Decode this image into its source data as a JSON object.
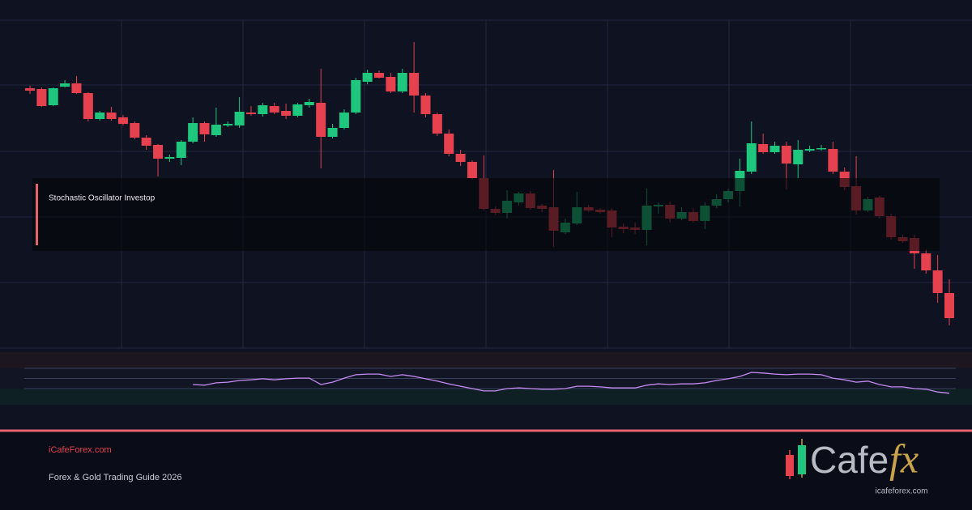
{
  "chart_data": {
    "type": "candlestick",
    "title": "Stochastic Oscillator Investop",
    "up_color": "#1fc77e",
    "down_color": "#e5414f",
    "ylim": [
      0,
      405
    ],
    "open": [
      321,
      320,
      300,
      323,
      327,
      315,
      283,
      291,
      285,
      278,
      260,
      251,
      234,
      235,
      255,
      278,
      263,
      275,
      275,
      291,
      289,
      299,
      293,
      287,
      300,
      303,
      261,
      272,
      291,
      329,
      340,
      335,
      317,
      340,
      312,
      289,
      265,
      240,
      230,
      210,
      172,
      167,
      180,
      191,
      176,
      174,
      143,
      154,
      174,
      171,
      170,
      150,
      149,
      146,
      175,
      177,
      160,
      168,
      157,
      176,
      184,
      194,
      218,
      252,
      242,
      250,
      227,
      244,
      246,
      246,
      218,
      200,
      170,
      186,
      163,
      137,
      136,
      117,
      96,
      68
    ],
    "high": [
      324,
      322,
      322,
      331,
      336,
      316,
      293,
      298,
      288,
      280,
      263,
      252,
      239,
      257,
      285,
      280,
      297,
      280,
      310,
      299,
      303,
      303,
      302,
      303,
      308,
      345,
      277,
      295,
      334,
      344,
      343,
      340,
      345,
      378,
      315,
      291,
      270,
      245,
      232,
      238,
      175,
      195,
      193,
      194,
      178,
      220,
      160,
      193,
      177,
      173,
      173,
      154,
      155,
      197,
      180,
      181,
      174,
      173,
      180,
      190,
      197,
      234,
      280,
      265,
      255,
      255,
      257,
      250,
      251,
      255,
      223,
      237,
      187,
      188,
      166,
      140,
      140,
      122,
      115,
      85
    ],
    "low": [
      314,
      298,
      299,
      322,
      314,
      280,
      281,
      281,
      275,
      258,
      245,
      212,
      230,
      226,
      253,
      255,
      261,
      273,
      272,
      287,
      286,
      289,
      283,
      285,
      297,
      222,
      259,
      270,
      289,
      326,
      333,
      315,
      315,
      291,
      285,
      262,
      237,
      225,
      208,
      170,
      164,
      160,
      176,
      171,
      168,
      125,
      141,
      152,
      168,
      166,
      137,
      142,
      141,
      127,
      166,
      155,
      158,
      155,
      147,
      173,
      180,
      175,
      215,
      240,
      240,
      196,
      210,
      242,
      244,
      215,
      195,
      165,
      168,
      160,
      134,
      130,
      98,
      92,
      56,
      28
    ],
    "close": [
      318,
      299,
      321,
      327,
      315,
      283,
      291,
      283,
      277,
      260,
      250,
      234,
      236,
      255,
      278,
      264,
      276,
      277,
      292,
      289,
      300,
      291,
      287,
      301,
      304,
      261,
      272,
      291,
      331,
      340,
      334,
      317,
      340,
      312,
      289,
      265,
      240,
      230,
      210,
      172,
      167,
      182,
      191,
      173,
      172,
      145,
      155,
      174,
      170,
      168,
      149,
      147,
      146,
      176,
      177,
      160,
      168,
      157,
      176,
      184,
      194,
      219,
      253,
      242,
      250,
      228,
      245,
      246,
      247,
      218,
      199,
      170,
      184,
      163,
      137,
      132,
      117,
      96,
      68,
      37
    ],
    "indicator": {
      "color": "#c58cf5",
      "ylim": [
        0,
        100
      ],
      "yticks": [
        20,
        50,
        80
      ],
      "values": [
        null,
        null,
        null,
        null,
        null,
        null,
        null,
        null,
        null,
        null,
        null,
        null,
        null,
        null,
        32,
        30,
        37,
        39,
        44,
        46,
        49,
        46,
        49,
        51,
        51,
        32,
        39,
        51,
        61,
        63,
        63,
        56,
        61,
        56,
        49,
        42,
        34,
        27,
        20,
        13,
        13,
        20,
        22,
        20,
        18,
        18,
        20,
        27,
        27,
        25,
        22,
        22,
        22,
        30,
        34,
        32,
        34,
        34,
        37,
        44,
        49,
        56,
        68,
        66,
        63,
        61,
        63,
        63,
        61,
        51,
        46,
        39,
        42,
        32,
        25,
        25,
        20,
        18,
        10,
        6
      ]
    }
  },
  "footer": {
    "site": "iCafeForex.com",
    "subtitle": "Forex & Gold Trading Guide 2026"
  },
  "logo": {
    "name": "Cafe",
    "mark": "fx",
    "url": "icafeforex.com"
  }
}
